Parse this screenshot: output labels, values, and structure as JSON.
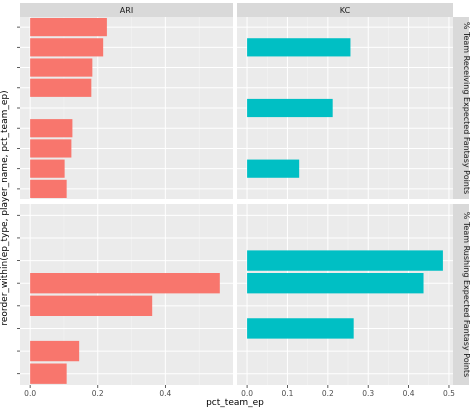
{
  "chart_data": {
    "type": "bar",
    "orientation": "horizontal",
    "xlabel": "pct_team_ep",
    "ylabel": "reorder_within(ep_type, player_name, pct_team_ep)",
    "columns": [
      {
        "team": "ARI",
        "color": "#F8766D",
        "xlim": [
          -0.03,
          0.6
        ],
        "xticks": [
          0.0,
          0.2,
          0.4
        ],
        "xtick_labels": [
          "0.0",
          "0.2",
          "0.4"
        ]
      },
      {
        "team": "KC",
        "color": "#00BFC4",
        "xlim": [
          -0.025,
          0.51
        ],
        "xticks": [
          0.0,
          0.1,
          0.2,
          0.3,
          0.4,
          0.5
        ],
        "xtick_labels": [
          "0.0",
          "0.1",
          "0.2",
          "0.3",
          "0.4",
          "0.5"
        ]
      }
    ],
    "rows": [
      {
        "label": "% Team Receiving Expected Fantasy Points",
        "slots": 9,
        "bars": {
          "ARI": [
            {
              "slot": 0,
              "value": 0.108
            },
            {
              "slot": 1,
              "value": 0.102
            },
            {
              "slot": 2,
              "value": 0.122
            },
            {
              "slot": 3,
              "value": 0.125
            },
            {
              "slot": 5,
              "value": 0.181
            },
            {
              "slot": 6,
              "value": 0.184
            },
            {
              "slot": 7,
              "value": 0.216
            },
            {
              "slot": 8,
              "value": 0.227
            }
          ],
          "KC": [
            {
              "slot": 1,
              "value": 0.129
            },
            {
              "slot": 4,
              "value": 0.212
            },
            {
              "slot": 7,
              "value": 0.256
            }
          ]
        }
      },
      {
        "label": "% Team Rushing Expected Fantasy Points",
        "slots": 8,
        "bars": {
          "ARI": [
            {
              "slot": 0,
              "value": 0.108
            },
            {
              "slot": 1,
              "value": 0.145
            },
            {
              "slot": 3,
              "value": 0.361
            },
            {
              "slot": 4,
              "value": 0.561
            }
          ],
          "KC": [
            {
              "slot": 2,
              "value": 0.264
            },
            {
              "slot": 4,
              "value": 0.437
            },
            {
              "slot": 5,
              "value": 0.485
            }
          ]
        }
      }
    ],
    "grid": true,
    "legend": "none"
  }
}
